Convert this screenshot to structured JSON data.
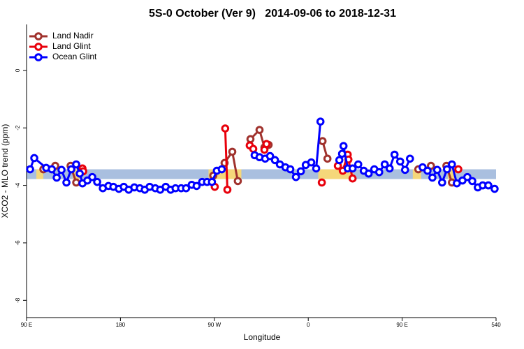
{
  "chart_data": {
    "type": "line",
    "title": "5S-0 October (Ver 9)   2014-09-06 to 2018-12-31",
    "xlabel": "Longitude",
    "ylabel": "XCO2 - MLO trend (ppm)",
    "xlim": [
      90,
      540
    ],
    "xticks": [
      {
        "value": 90,
        "label": "90 E"
      },
      180,
      {
        "value": 270,
        "label": "90 W"
      },
      {
        "value": 360,
        "label": "0"
      },
      {
        "value": 450,
        "label": "90 E"
      },
      540
    ],
    "ylim": [
      -8.6,
      1.6
    ],
    "yticks": [
      0,
      -2,
      -4,
      -6,
      -8
    ],
    "legend": "top-left",
    "band_ylim": [
      -3.44,
      -3.78
    ],
    "band_color": "#a9bfdf",
    "land_color": "#f5d77a",
    "land_spans": [
      [
        99.4,
        106.1
      ],
      [
        134.3,
        143.0
      ],
      [
        264.4,
        295.9
      ],
      [
        369.6,
        403.2
      ],
      [
        460.2,
        468.2
      ],
      [
        493.7,
        501.7
      ]
    ],
    "series": [
      {
        "name": "Land Nadir",
        "color": "#a0322d",
        "x": [
          106.1,
          null,
          117.5,
          null,
          132.2,
          137.6,
          null,
          269.0,
          279.8,
          287.2,
          292.5,
          null,
          304.6,
          313.3,
          318.0,
          322.0,
          null,
          373.7,
          378.4,
          null,
          465.5,
          null,
          477.6,
          null,
          492.4,
          497.7
        ],
        "values": [
          -3.44,
          null,
          -3.32,
          null,
          -3.32,
          -3.9,
          null,
          -3.66,
          -3.22,
          -2.83,
          -3.85,
          null,
          -2.39,
          -2.07,
          -2.68,
          -2.59,
          null,
          -2.46,
          -3.07,
          null,
          -3.44,
          null,
          -3.32,
          null,
          -3.32,
          -3.9
        ]
      },
      {
        "name": "Land Glint",
        "color": "#e8000b",
        "x": [
          143.6,
          144.3,
          null,
          270.4,
          null,
          280.4,
          282.5,
          null,
          303.9,
          307.3,
          null,
          318.0,
          320.0,
          null,
          373.0,
          null,
          388.4,
          393.1,
          397.8,
          398.5,
          402.5,
          null,
          503.8
        ],
        "values": [
          -3.41,
          -3.51,
          null,
          -4.05,
          null,
          -2.02,
          -4.15,
          null,
          -2.61,
          -2.73,
          null,
          -2.76,
          -2.56,
          null,
          -3.9,
          null,
          -3.32,
          -3.49,
          -2.93,
          -3.1,
          -3.76,
          null,
          -3.44
        ]
      },
      {
        "name": "Ocean Glint",
        "color": "#0000ff",
        "x": [
          93.4,
          97.4,
          108.8,
          114.2,
          118.9,
          123.5,
          128.2,
          132.9,
          137.6,
          141.0,
          143.6,
          148.3,
          153.0,
          157.7,
          163.1,
          168.5,
          173.2,
          178.5,
          183.2,
          187.9,
          193.3,
          198.6,
          203.3,
          208.0,
          213.4,
          218.1,
          223.4,
          228.1,
          232.8,
          238.2,
          242.9,
          248.3,
          253.0,
          258.3,
          263.0,
          267.7,
          272.4,
          277.1,
          null,
          308.6,
          313.3,
          318.7,
          323.4,
          328.1,
          332.8,
          338.1,
          342.8,
          348.2,
          352.9,
          357.6,
          362.9,
          367.6,
          371.7,
          null,
          389.8,
          392.4,
          393.8,
          397.8,
          402.5,
          407.9,
          413.2,
          417.9,
          423.3,
          428.0,
          433.3,
          438.0,
          442.7,
          448.1,
          452.8,
          457.5,
          null,
          469.6,
          474.3,
          479.0,
          483.6,
          488.3,
          493.0,
          497.7,
          502.4,
          507.8,
          512.5,
          517.2,
          522.5,
          527.2,
          532.6,
          538.6
        ],
        "values": [
          -3.44,
          -3.05,
          -3.39,
          -3.44,
          -3.73,
          -3.46,
          -3.9,
          -3.44,
          -3.27,
          -3.59,
          -3.93,
          -3.83,
          -3.71,
          -3.88,
          -4.1,
          -4.02,
          -4.05,
          -4.12,
          -4.05,
          -4.15,
          -4.07,
          -4.1,
          -4.15,
          -4.05,
          -4.1,
          -4.15,
          -4.05,
          -4.15,
          -4.1,
          -4.1,
          -4.1,
          -3.98,
          -4.02,
          -3.88,
          -3.88,
          -3.88,
          -3.49,
          -3.44,
          null,
          -2.95,
          -3.02,
          -3.07,
          -2.98,
          -3.12,
          -3.27,
          -3.37,
          -3.44,
          -3.71,
          -3.51,
          -3.29,
          -3.2,
          -3.41,
          -1.78,
          null,
          -3.12,
          -2.9,
          -2.63,
          -3.41,
          -3.41,
          -3.27,
          -3.49,
          -3.59,
          -3.44,
          -3.54,
          -3.27,
          -3.41,
          -2.93,
          -3.17,
          -3.46,
          -3.07,
          null,
          -3.37,
          -3.49,
          -3.73,
          -3.46,
          -3.9,
          -3.44,
          -3.27,
          -3.93,
          -3.83,
          -3.71,
          -3.85,
          -4.07,
          -4.0,
          -4.0,
          -4.12
        ]
      }
    ]
  }
}
